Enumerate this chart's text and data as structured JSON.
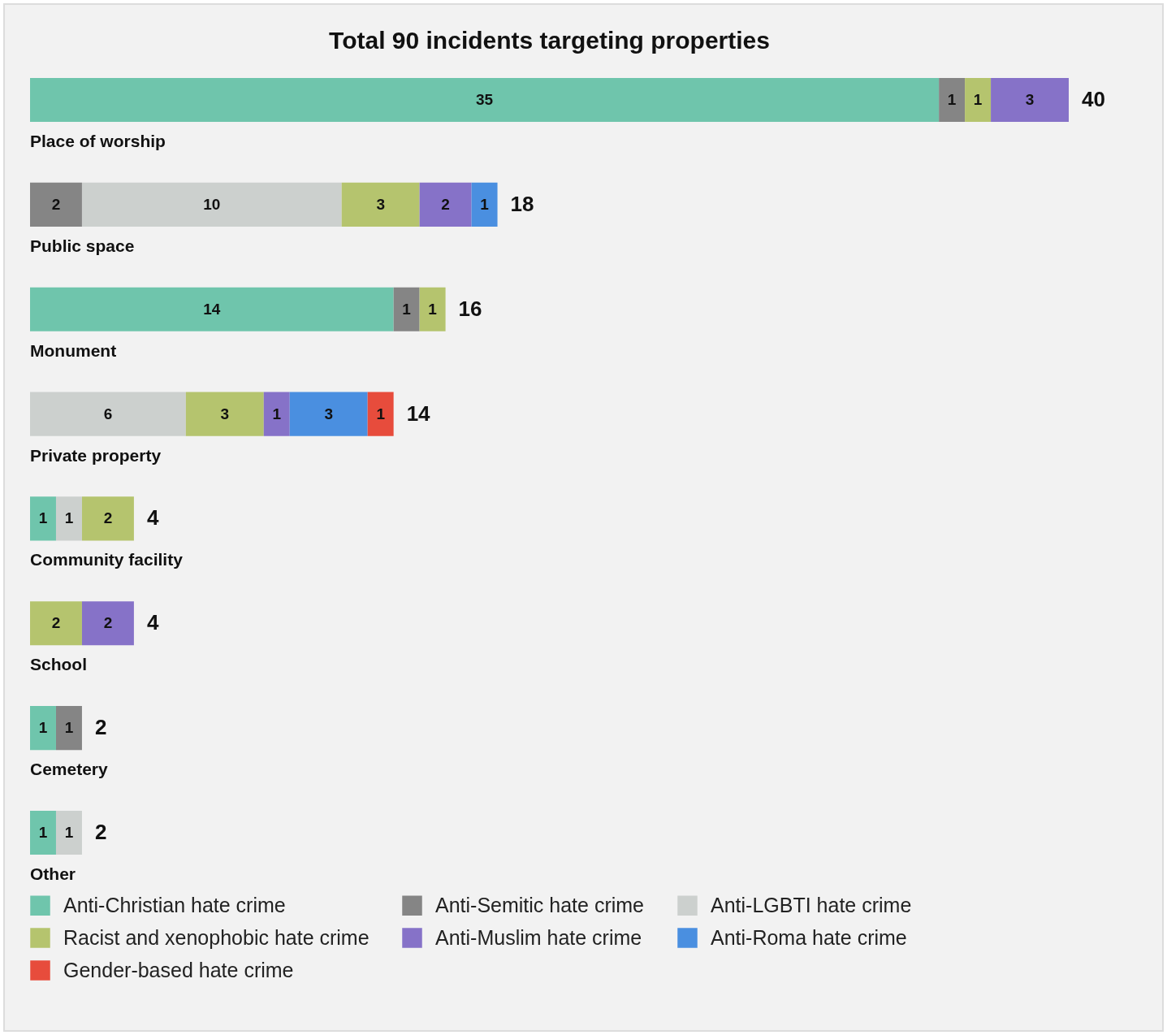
{
  "chart_data": {
    "type": "bar",
    "orientation": "horizontal",
    "stacked": true,
    "title": "Total 90 incidents targeting properties",
    "categories": [
      "Place of worship",
      "Public space",
      "Monument",
      "Private property",
      "Community facility",
      "School",
      "Cemetery",
      "Other"
    ],
    "series": [
      {
        "name": "Anti-Christian hate crime",
        "color": "#6fc5ac",
        "values": [
          35,
          null,
          14,
          null,
          1,
          null,
          1,
          1
        ]
      },
      {
        "name": "Anti-Semitic hate crime",
        "color": "#858585",
        "values": [
          1,
          2,
          1,
          null,
          null,
          null,
          1,
          null
        ]
      },
      {
        "name": "Anti-LGBTI hate crime",
        "color": "#ccd0ce",
        "values": [
          null,
          10,
          null,
          6,
          1,
          null,
          null,
          1
        ]
      },
      {
        "name": "Racist and xenophobic hate crime",
        "color": "#b5c46e",
        "values": [
          1,
          3,
          1,
          3,
          2,
          2,
          null,
          null
        ]
      },
      {
        "name": "Anti-Muslim hate crime",
        "color": "#8672c8",
        "values": [
          3,
          2,
          null,
          1,
          null,
          2,
          null,
          null
        ]
      },
      {
        "name": "Anti-Roma hate crime",
        "color": "#4a8fe0",
        "values": [
          null,
          1,
          null,
          3,
          null,
          null,
          null,
          null
        ]
      },
      {
        "name": "Gender-based hate crime",
        "color": "#e74c3c",
        "values": [
          null,
          null,
          null,
          1,
          null,
          null,
          null,
          null
        ]
      }
    ],
    "data_labels": true,
    "totals": [
      "40",
      "18",
      "16",
      "14",
      "4",
      "4",
      "2",
      "2"
    ],
    "legend": "bottom",
    "grid": false,
    "tick_labels": false
  }
}
